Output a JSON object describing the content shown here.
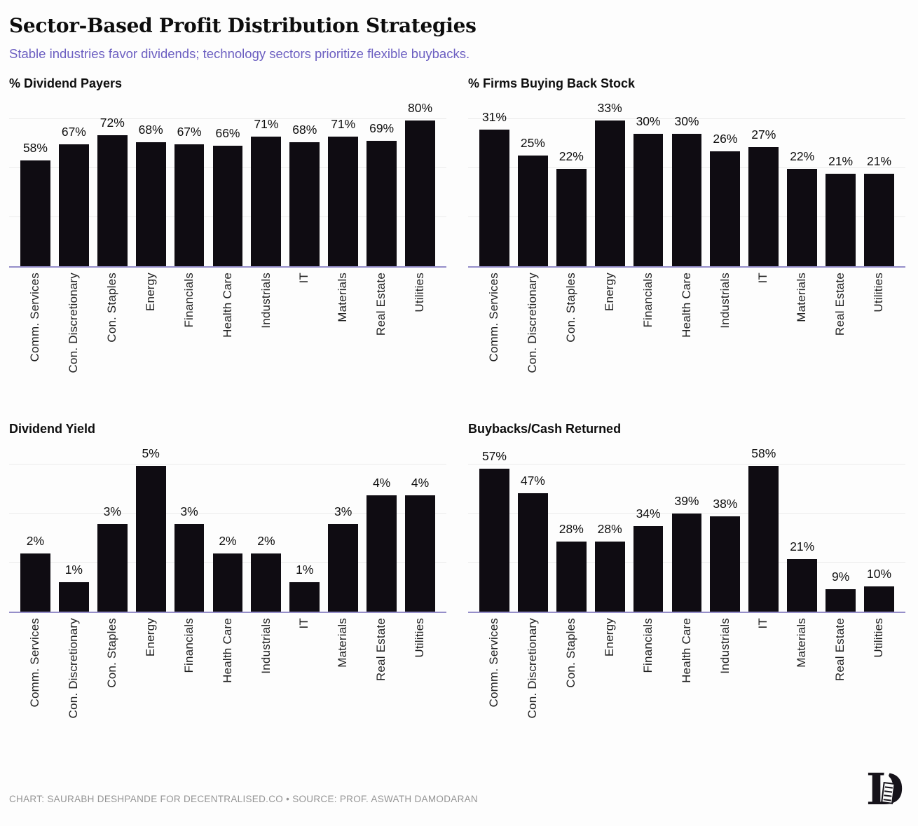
{
  "page": {
    "title": "Sector-Based Profit Distribution Strategies",
    "subtitle": "Stable industries favor dividends; technology sectors prioritize flexible buybacks.",
    "footer_credit": "CHART: SAURABH DESHPANDE FOR DECENTRALISED.CO • SOURCE: PROF. ASWATH DAMODARAN",
    "logo": "decentralised-logo"
  },
  "colors": {
    "bar": "#0f0c12",
    "axis_line": "#958ec9",
    "gridline": "#ebebeb",
    "subtitle_text": "#6c5fc1",
    "footer_text": "#949494",
    "title_text": "#0d0d0d",
    "label_text": "#212121"
  },
  "chart_data": [
    {
      "type": "bar",
      "title": "% Dividend Payers",
      "unit": "%",
      "categories": [
        "Comm. Services",
        "Con. Discretionary",
        "Con. Staples",
        "Energy",
        "Financials",
        "Health Care",
        "Industrials",
        "IT",
        "Materials",
        "Real Estate",
        "Utilities"
      ],
      "values": [
        58,
        67,
        72,
        68,
        67,
        66,
        71,
        68,
        71,
        69,
        80
      ],
      "ylim": [
        0,
        92
      ],
      "grid": true,
      "gridline_count": 3,
      "value_labels": "above bars",
      "x_tick_rotation": 90
    },
    {
      "type": "bar",
      "title": "% Firms Buying Back Stock",
      "unit": "%",
      "categories": [
        "Comm. Services",
        "Con. Discretionary",
        "Con. Staples",
        "Energy",
        "Financials",
        "Health Care",
        "Industrials",
        "IT",
        "Materials",
        "Real Estate",
        "Utilities"
      ],
      "values": [
        31,
        25,
        22,
        33,
        30,
        30,
        26,
        27,
        22,
        21,
        21
      ],
      "ylim": [
        0,
        38
      ],
      "grid": true,
      "gridline_count": 3,
      "value_labels": "above bars",
      "x_tick_rotation": 90
    },
    {
      "type": "bar",
      "title": "Dividend Yield",
      "unit": "%",
      "categories": [
        "Comm. Services",
        "Con. Discretionary",
        "Con. Staples",
        "Energy",
        "Financials",
        "Health Care",
        "Industrials",
        "IT",
        "Materials",
        "Real Estate",
        "Utilities"
      ],
      "values": [
        2,
        1,
        3,
        5,
        3,
        2,
        2,
        1,
        3,
        4,
        4
      ],
      "ylim": [
        0,
        5.8
      ],
      "grid": true,
      "gridline_count": 3,
      "value_labels": "above bars",
      "x_tick_rotation": 90
    },
    {
      "type": "bar",
      "title": "Buybacks/Cash Returned",
      "unit": "%",
      "categories": [
        "Comm. Services",
        "Con. Discretionary",
        "Con. Staples",
        "Energy",
        "Financials",
        "Health Care",
        "Industrials",
        "IT",
        "Materials",
        "Real Estate",
        "Utilities"
      ],
      "values": [
        57,
        47,
        28,
        28,
        34,
        39,
        38,
        58,
        21,
        9,
        10
      ],
      "ylim": [
        0,
        67
      ],
      "grid": true,
      "gridline_count": 3,
      "value_labels": "above bars",
      "x_tick_rotation": 90
    }
  ]
}
